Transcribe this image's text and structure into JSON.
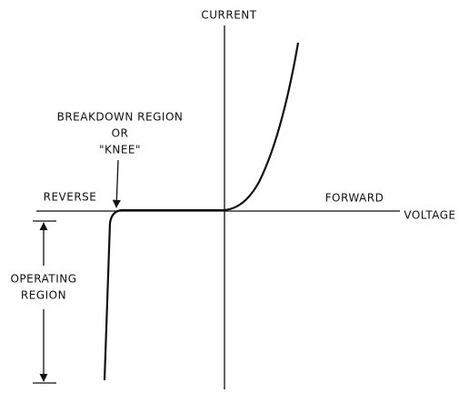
{
  "axes": {
    "y_label": "CURRENT",
    "x_label": "VOLTAGE",
    "left": "REVERSE",
    "right": "FORWARD"
  },
  "annotations": {
    "breakdown": [
      "BREAKDOWN REGION",
      "OR",
      "\"KNEE\""
    ],
    "operating": [
      "OPERATING",
      "REGION"
    ]
  }
}
